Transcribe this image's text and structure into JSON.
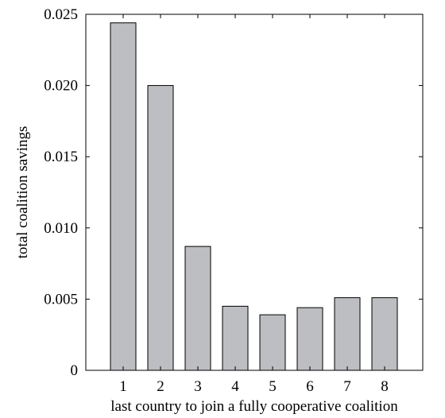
{
  "chart_data": {
    "type": "bar",
    "categories": [
      "1",
      "2",
      "3",
      "4",
      "5",
      "6",
      "7",
      "8"
    ],
    "values": [
      0.0244,
      0.02,
      0.0087,
      0.0045,
      0.0039,
      0.0044,
      0.0051,
      0.0051
    ],
    "title": "",
    "xlabel": "last country to join a fully cooperative coalition",
    "ylabel": "total coalition savings",
    "ylim": [
      0,
      0.025
    ],
    "yticks": [
      "0",
      "0.005",
      "0.010",
      "0.015",
      "0.020",
      "0.025"
    ],
    "grid": false,
    "legend": "none",
    "bar_color": "#bcbec1"
  }
}
